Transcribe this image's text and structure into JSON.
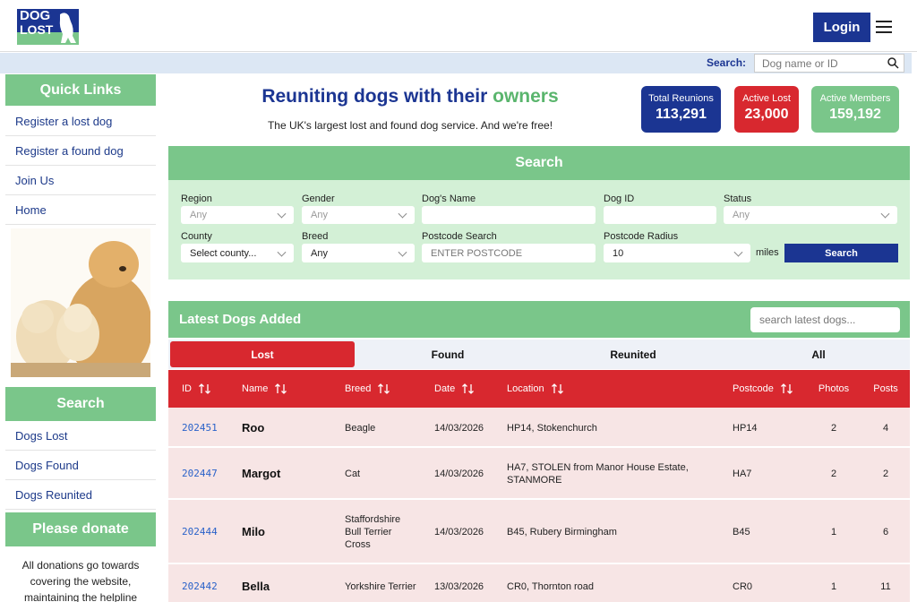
{
  "header": {
    "logo_line1": "DOG",
    "logo_line2": "LOST",
    "login": "Login"
  },
  "search_bar": {
    "label": "Search:",
    "placeholder": "Dog name or ID"
  },
  "sidebar": {
    "quick_links": {
      "title": "Quick Links",
      "items": [
        "Register a lost dog",
        "Register a found dog",
        "Join Us",
        "Home"
      ]
    },
    "search": {
      "title": "Search",
      "items": [
        "Dogs Lost",
        "Dogs Found",
        "Dogs Reunited"
      ]
    },
    "donate": {
      "title": "Please donate",
      "text": "All donations go towards covering the website, maintaining the helpline"
    }
  },
  "hero": {
    "title_main": "Reuniting dogs with their ",
    "title_accent": "owners",
    "subtitle": "The UK's largest lost and found dog service. And we're free!"
  },
  "stats": [
    {
      "label": "Total Reunions",
      "value": "113,291"
    },
    {
      "label": "Active Lost",
      "value": "23,000"
    },
    {
      "label": "Active Members",
      "value": "159,192"
    }
  ],
  "search_panel": {
    "title": "Search",
    "rows": [
      [
        {
          "label": "Region",
          "value": "Any"
        },
        {
          "label": "Gender",
          "value": "Any"
        },
        {
          "label": "Dog's Name"
        },
        {
          "label": "Dog ID"
        },
        {
          "label": "Status",
          "value": "Any"
        }
      ],
      [
        {
          "label": "County",
          "value": "Select county..."
        },
        {
          "label": "Breed",
          "value": "Any"
        },
        {
          "label": "Postcode Search",
          "value": "ENTER POSTCODE"
        },
        {
          "label": "Postcode Radius",
          "value": "10"
        }
      ]
    ],
    "miles": "miles",
    "button": "Search"
  },
  "latest": {
    "title": "Latest Dogs Added",
    "placeholder": "search latest dogs...",
    "tabs": [
      "Lost",
      "Found",
      "Reunited",
      "All"
    ],
    "columns": [
      "ID",
      "Name",
      "Breed",
      "Date",
      "Location",
      "Postcode",
      "Photos",
      "Posts"
    ],
    "rows": [
      [
        "202451",
        "Roo",
        "Beagle",
        "14/03/2026",
        "HP14, Stokenchurch",
        "HP14",
        "2",
        "4"
      ],
      [
        "202447",
        "Margot",
        "Cat",
        "14/03/2026",
        "HA7, STOLEN from Manor House Estate, STANMORE",
        "HA7",
        "2",
        "2"
      ],
      [
        "202444",
        "Milo",
        "Staffordshire Bull Terrier Cross",
        "14/03/2026",
        "B45, Rubery Birmingham",
        "B45",
        "1",
        "6"
      ],
      [
        "202442",
        "Bella",
        "Yorkshire Terrier",
        "13/03/2026",
        "CR0, Thornton road",
        "CR0",
        "1",
        "11"
      ]
    ]
  }
}
